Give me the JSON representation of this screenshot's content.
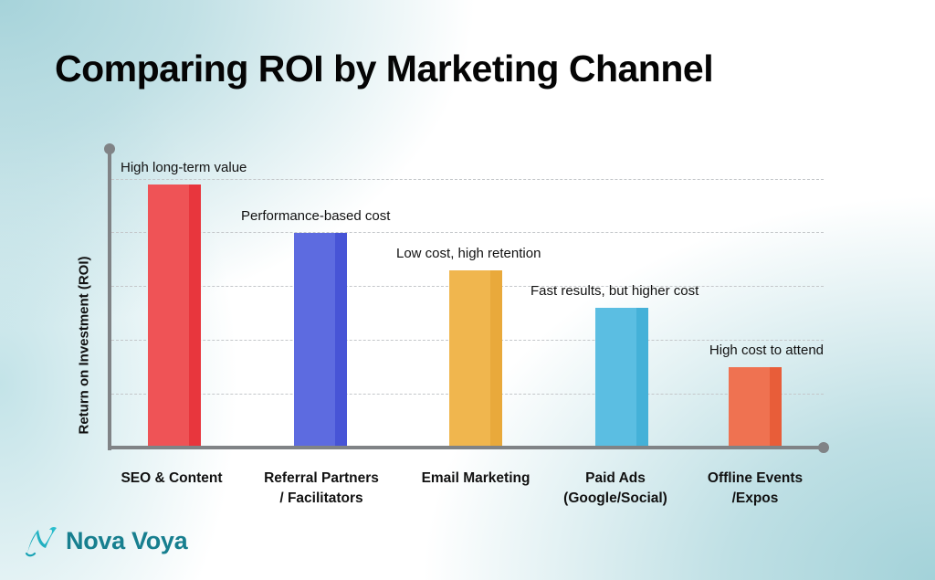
{
  "title": "Comparing ROI by Marketing Channel",
  "brand": {
    "name": "Nova Voya",
    "color": "#177f8f",
    "icon": "nova-voya-logo-icon"
  },
  "chart_data": {
    "type": "bar",
    "title": "Comparing ROI by Marketing Channel",
    "xlabel": "",
    "ylabel": "Return on Investment (ROI)",
    "ylim": [
      0,
      5
    ],
    "grid": true,
    "y_ticks_labeled": false,
    "categories": [
      "SEO & Content",
      "Referral Partners / Facilitators",
      "Email Marketing",
      "Paid Ads (Google/Social)",
      "Offline Events /Expos"
    ],
    "category_lines": [
      [
        "SEO & Content"
      ],
      [
        "Referral Partners",
        "/ Facilitators"
      ],
      [
        "Email Marketing"
      ],
      [
        "Paid Ads",
        "(Google/Social)"
      ],
      [
        "Offline Events",
        "/Expos"
      ]
    ],
    "values": [
      4.9,
      4.0,
      3.3,
      2.6,
      1.5
    ],
    "annotations": [
      "High long-term value",
      "Performance-based cost",
      "Low cost, high retention",
      "Fast results, but higher cost",
      "High cost to attend"
    ],
    "colors": [
      "#ef5356",
      "#5d6be0",
      "#f0b64e",
      "#5bbee2",
      "#ef7251"
    ],
    "shade_colors": [
      "#e8363d",
      "#4754d6",
      "#e9a93b",
      "#44b1d8",
      "#e85d39"
    ]
  }
}
